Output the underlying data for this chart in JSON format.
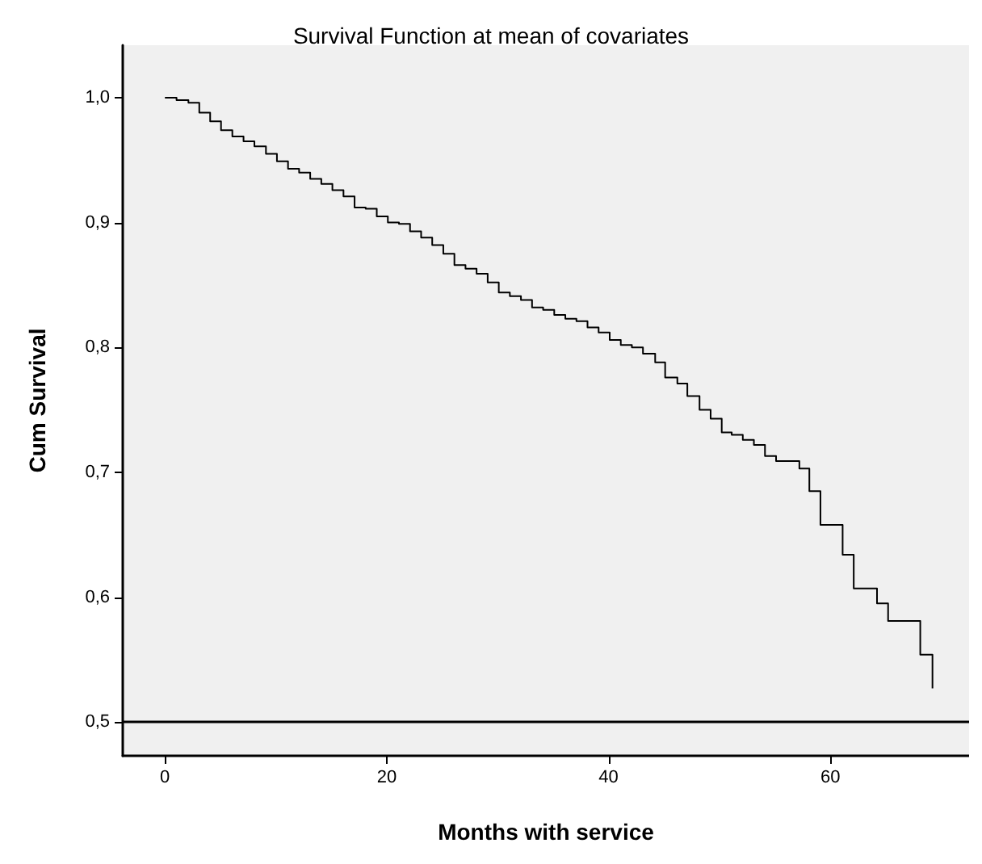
{
  "chart_data": {
    "type": "step",
    "title": "Survival Function at mean of covariates",
    "xlabel": "Months with service",
    "ylabel": "Cum Survival",
    "x": [
      0,
      1.05,
      2.12,
      3.1,
      4.08,
      5.06,
      6.08,
      7.09,
      8.07,
      9.11,
      10.1,
      11.1,
      12.1,
      13.1,
      14.1,
      15.1,
      16.1,
      17.1,
      18.1,
      19.1,
      20.1,
      21.1,
      22.1,
      23.1,
      24.1,
      25.1,
      26.1,
      27.1,
      28.1,
      29.1,
      30.1,
      31.1,
      32.1,
      33.1,
      34.1,
      35.1,
      36.1,
      37.1,
      38.1,
      39.1,
      40.1,
      41.1,
      42.1,
      43.1,
      44.2,
      45.1,
      46.2,
      47.1,
      48.2,
      49.2,
      50.2,
      51.1,
      52.1,
      53.1,
      54.1,
      55.1,
      57.2,
      58.1,
      59.1,
      61.1,
      62.1,
      64.2,
      65.2,
      68.1,
      69.2
    ],
    "series": [
      {
        "color": "#000000",
        "values": [
          1.0,
          0.998,
          0.996,
          0.988,
          0.981,
          0.974,
          0.969,
          0.965,
          0.961,
          0.955,
          0.949,
          0.943,
          0.94,
          0.935,
          0.931,
          0.926,
          0.921,
          0.912,
          0.911,
          0.905,
          0.9,
          0.899,
          0.893,
          0.888,
          0.882,
          0.875,
          0.866,
          0.863,
          0.859,
          0.852,
          0.844,
          0.841,
          0.838,
          0.832,
          0.83,
          0.826,
          0.823,
          0.821,
          0.816,
          0.812,
          0.806,
          0.802,
          0.8,
          0.795,
          0.788,
          0.776,
          0.771,
          0.761,
          0.75,
          0.743,
          0.732,
          0.73,
          0.726,
          0.722,
          0.713,
          0.709,
          0.703,
          0.685,
          0.658,
          0.634,
          0.607,
          0.595,
          0.581,
          0.554,
          0.527
        ]
      }
    ],
    "xlim": [
      -3.8,
      72.5
    ],
    "xticks": [
      0,
      20,
      40,
      60
    ],
    "ylim": [
      0.473,
      1.042
    ],
    "yticks": [
      {
        "value": 0.5,
        "label": "0,5"
      },
      {
        "value": 0.6,
        "label": "0,6"
      },
      {
        "value": 0.7,
        "label": "0,7"
      },
      {
        "value": 0.8,
        "label": "0,8"
      },
      {
        "value": 0.9,
        "label": "0,9"
      },
      {
        "value": 1.0,
        "label": "1,0"
      }
    ],
    "ref_lines": [
      {
        "axis": "y",
        "value": 0.5,
        "color": "#000000"
      }
    ],
    "grid": false,
    "marker": "none",
    "line_style": "solid"
  }
}
